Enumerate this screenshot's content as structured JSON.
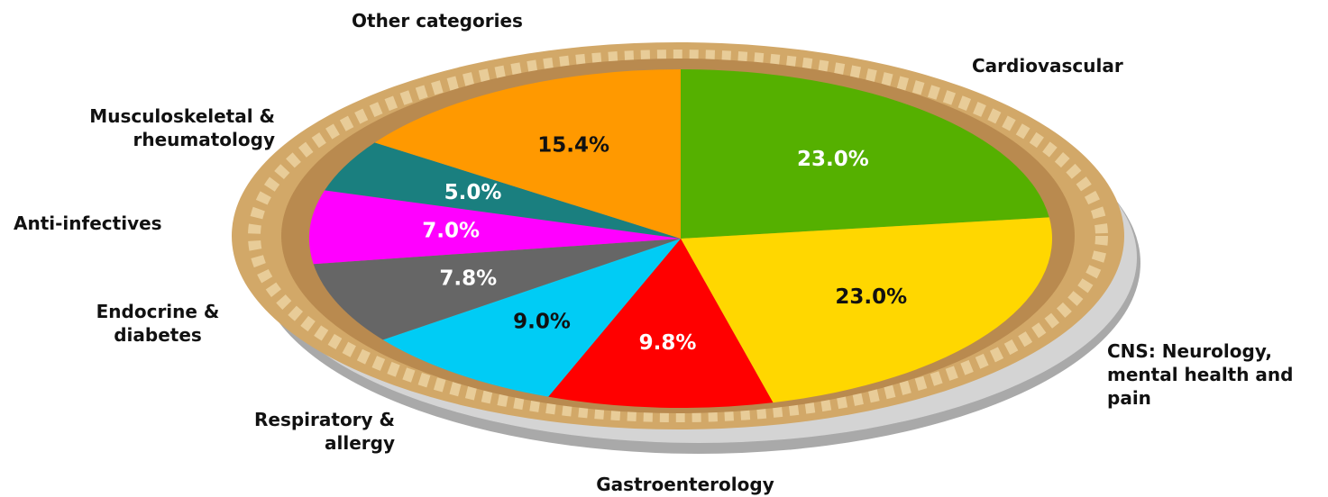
{
  "chart_data": {
    "type": "pie",
    "categories": [
      "Cardiovascular",
      "CNS: Neurology, mental health and pain",
      "Gastroenterology",
      "Respiratory & allergy",
      "Endocrine & diabetes",
      "Anti-infectives",
      "Musculoskeletal & rheumatology",
      "Other categories"
    ],
    "values": [
      23.0,
      23.0,
      9.8,
      9.0,
      7.8,
      7.0,
      5.0,
      15.4
    ],
    "value_labels": [
      "23.0%",
      "23.0%",
      "9.8%",
      "9.0%",
      "7.8%",
      "7.0%",
      "5.0%",
      "15.4%"
    ],
    "colors": [
      "#55b000",
      "#ffd700",
      "#ff0000",
      "#00ccf5",
      "#666666",
      "#ff00ff",
      "#1a7f7f",
      "#ff9900"
    ],
    "label_colors": [
      "#ffffff",
      "#111111",
      "#ffffff",
      "#111111",
      "#ffffff",
      "#ffffff",
      "#ffffff",
      "#111111"
    ]
  }
}
